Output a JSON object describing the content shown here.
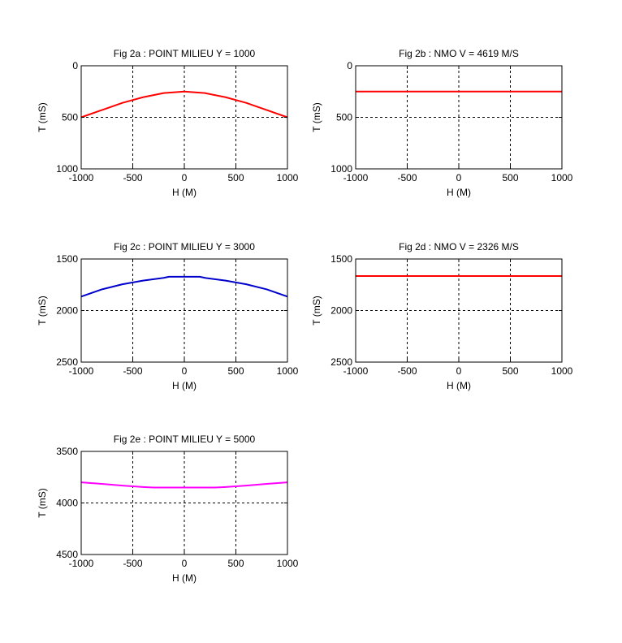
{
  "figure": {
    "background": "#ffffff"
  },
  "chart_data": [
    {
      "type": "line",
      "title": "Fig 2a : POINT MILIEU Y = 1000",
      "xlabel": "H (M)",
      "ylabel": "T (mS)",
      "xlim": [
        -1000,
        1000
      ],
      "ylim": [
        0,
        1000
      ],
      "y_inverted": true,
      "grid": true,
      "xticks": [
        "-1000",
        "-500",
        "0",
        "500",
        "1000"
      ],
      "yticks": [
        "0",
        "500",
        "1000"
      ],
      "series": [
        {
          "color": "#ff0000",
          "x": [
            -1000,
            -800,
            -600,
            -400,
            -200,
            0,
            200,
            400,
            600,
            800,
            1000
          ],
          "y": [
            500,
            430,
            360,
            305,
            265,
            250,
            265,
            305,
            360,
            430,
            500
          ]
        }
      ]
    },
    {
      "type": "line",
      "title": "Fig 2b : NMO V = 4619 M/S",
      "xlabel": "H (M)",
      "ylabel": "T (mS)",
      "xlim": [
        -1000,
        1000
      ],
      "ylim": [
        0,
        1000
      ],
      "y_inverted": true,
      "grid": true,
      "xticks": [
        "-1000",
        "-500",
        "0",
        "500",
        "1000"
      ],
      "yticks": [
        "0",
        "500",
        "1000"
      ],
      "series": [
        {
          "color": "#ff0000",
          "x": [
            -1000,
            1000
          ],
          "y": [
            250,
            250
          ]
        }
      ]
    },
    {
      "type": "line",
      "title": "Fig 2c : POINT MILIEU Y = 3000",
      "xlabel": "H (M)",
      "ylabel": "T (mS)",
      "xlim": [
        -1000,
        1000
      ],
      "ylim": [
        1500,
        2500
      ],
      "y_inverted": true,
      "grid": true,
      "xticks": [
        "-1000",
        "-500",
        "0",
        "500",
        "1000"
      ],
      "yticks": [
        "1500",
        "2000",
        "2500"
      ],
      "series": [
        {
          "color": "#0000cc",
          "x": [
            -1000,
            -800,
            -600,
            -400,
            -200,
            -150,
            0,
            150,
            200,
            400,
            600,
            800,
            1000
          ],
          "y": [
            1865,
            1795,
            1745,
            1710,
            1683,
            1672,
            1672,
            1672,
            1683,
            1710,
            1745,
            1795,
            1865
          ]
        }
      ]
    },
    {
      "type": "line",
      "title": "Fig 2d : NMO V = 2326 M/S",
      "xlabel": "H (M)",
      "ylabel": "T (mS)",
      "xlim": [
        -1000,
        1000
      ],
      "ylim": [
        1500,
        2500
      ],
      "y_inverted": true,
      "grid": true,
      "xticks": [
        "-1000",
        "-500",
        "0",
        "500",
        "1000"
      ],
      "yticks": [
        "1500",
        "2000",
        "2500"
      ],
      "series": [
        {
          "color": "#ff0000",
          "x": [
            -1000,
            1000
          ],
          "y": [
            1665,
            1665
          ]
        }
      ]
    },
    {
      "type": "line",
      "title": "Fig 2e : POINT MILIEU Y = 5000",
      "xlabel": "H (M)",
      "ylabel": "T (mS)",
      "xlim": [
        -1000,
        1000
      ],
      "ylim": [
        3500,
        4500
      ],
      "y_inverted": true,
      "grid": true,
      "xticks": [
        "-1000",
        "-500",
        "0",
        "500",
        "1000"
      ],
      "yticks": [
        "3500",
        "4000",
        "4500"
      ],
      "series": [
        {
          "color": "#ff00ff",
          "x": [
            -1000,
            -800,
            -600,
            -400,
            -300,
            -200,
            0,
            200,
            300,
            400,
            600,
            800,
            1000
          ],
          "y": [
            3800,
            3815,
            3832,
            3845,
            3850,
            3850,
            3850,
            3850,
            3850,
            3845,
            3832,
            3815,
            3800
          ]
        }
      ]
    }
  ]
}
